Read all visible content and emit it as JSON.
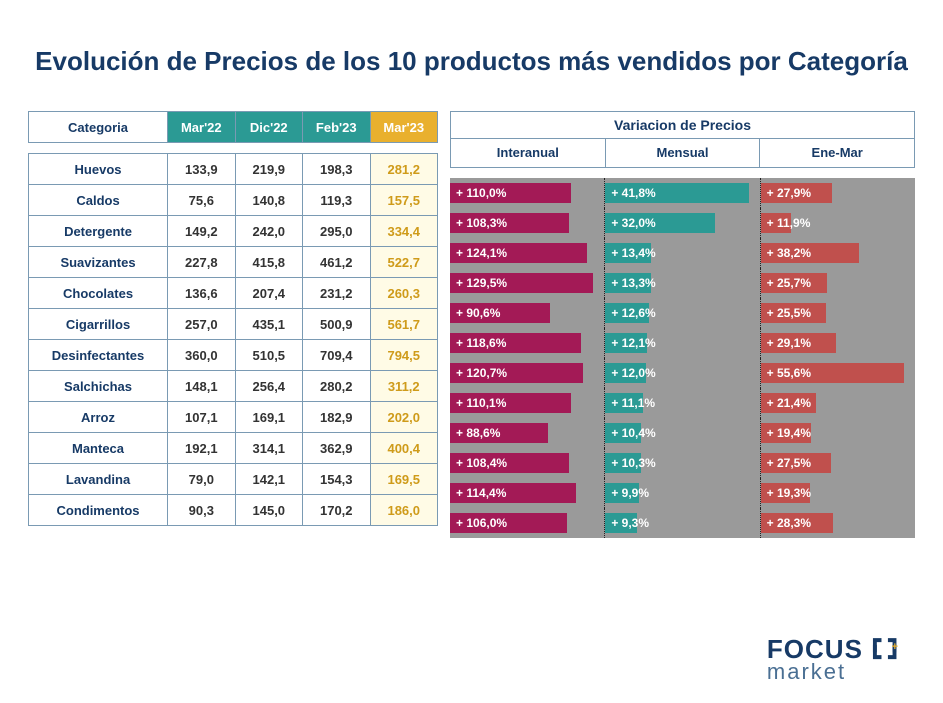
{
  "title": "Evolución de Precios de los 10 productos más vendidos por Categoría",
  "table": {
    "headers": {
      "cat": "Categoria",
      "c1": "Mar'22",
      "c2": "Dic'22",
      "c3": "Feb'23",
      "c4": "Mar'23"
    },
    "header_colors": {
      "teal": "#2b9a94",
      "gold": "#e9b02e",
      "text": "#173a66",
      "border": "#7a9ab3",
      "gold_cell_bg": "#fffbe6",
      "gold_cell_fg": "#cf9b1a"
    },
    "col_widths": {
      "cat": "34%",
      "other": "16.5%"
    }
  },
  "variation_panel": {
    "title": "Variacion de Precios",
    "subheads": [
      "Interanual",
      "Mensual",
      "Ene-Mar"
    ],
    "bg": "#9a9a9a",
    "bar_scales": {
      "interanual_max": 140,
      "mensual_max": 45,
      "ene_mar_max": 60
    },
    "colors": {
      "interanual": "#a31a56",
      "mensual": "#2b9a94",
      "ene_mar": "#c0504d",
      "divider": "#222222"
    }
  },
  "rows": [
    {
      "cat": "Huevos",
      "mar22": "133,9",
      "dic22": "219,9",
      "feb23": "198,3",
      "mar23": "281,2",
      "interanual": 110.0,
      "mensual": 41.8,
      "ene_mar": 27.9
    },
    {
      "cat": "Caldos",
      "mar22": "75,6",
      "dic22": "140,8",
      "feb23": "119,3",
      "mar23": "157,5",
      "interanual": 108.3,
      "mensual": 32.0,
      "ene_mar": 11.9
    },
    {
      "cat": "Detergente",
      "mar22": "149,2",
      "dic22": "242,0",
      "feb23": "295,0",
      "mar23": "334,4",
      "interanual": 124.1,
      "mensual": 13.4,
      "ene_mar": 38.2
    },
    {
      "cat": "Suavizantes",
      "mar22": "227,8",
      "dic22": "415,8",
      "feb23": "461,2",
      "mar23": "522,7",
      "interanual": 129.5,
      "mensual": 13.3,
      "ene_mar": 25.7
    },
    {
      "cat": "Chocolates",
      "mar22": "136,6",
      "dic22": "207,4",
      "feb23": "231,2",
      "mar23": "260,3",
      "interanual": 90.6,
      "mensual": 12.6,
      "ene_mar": 25.5
    },
    {
      "cat": "Cigarrillos",
      "mar22": "257,0",
      "dic22": "435,1",
      "feb23": "500,9",
      "mar23": "561,7",
      "interanual": 118.6,
      "mensual": 12.1,
      "ene_mar": 29.1
    },
    {
      "cat": "Desinfectantes",
      "mar22": "360,0",
      "dic22": "510,5",
      "feb23": "709,4",
      "mar23": "794,5",
      "interanual": 120.7,
      "mensual": 12.0,
      "ene_mar": 55.6
    },
    {
      "cat": "Salchichas",
      "mar22": "148,1",
      "dic22": "256,4",
      "feb23": "280,2",
      "mar23": "311,2",
      "interanual": 110.1,
      "mensual": 11.1,
      "ene_mar": 21.4
    },
    {
      "cat": "Arroz",
      "mar22": "107,1",
      "dic22": "169,1",
      "feb23": "182,9",
      "mar23": "202,0",
      "interanual": 88.6,
      "mensual": 10.4,
      "ene_mar": 19.4
    },
    {
      "cat": "Manteca",
      "mar22": "192,1",
      "dic22": "314,1",
      "feb23": "362,9",
      "mar23": "400,4",
      "interanual": 108.4,
      "mensual": 10.3,
      "ene_mar": 27.5
    },
    {
      "cat": "Lavandina",
      "mar22": "79,0",
      "dic22": "142,1",
      "feb23": "154,3",
      "mar23": "169,5",
      "interanual": 114.4,
      "mensual": 9.9,
      "ene_mar": 19.3
    },
    {
      "cat": "Condimentos",
      "mar22": "90,3",
      "dic22": "145,0",
      "feb23": "170,2",
      "mar23": "186,0",
      "interanual": 106.0,
      "mensual": 9.3,
      "ene_mar": 28.3
    }
  ],
  "logo": {
    "line1": "FOCUS",
    "line2": "market"
  }
}
